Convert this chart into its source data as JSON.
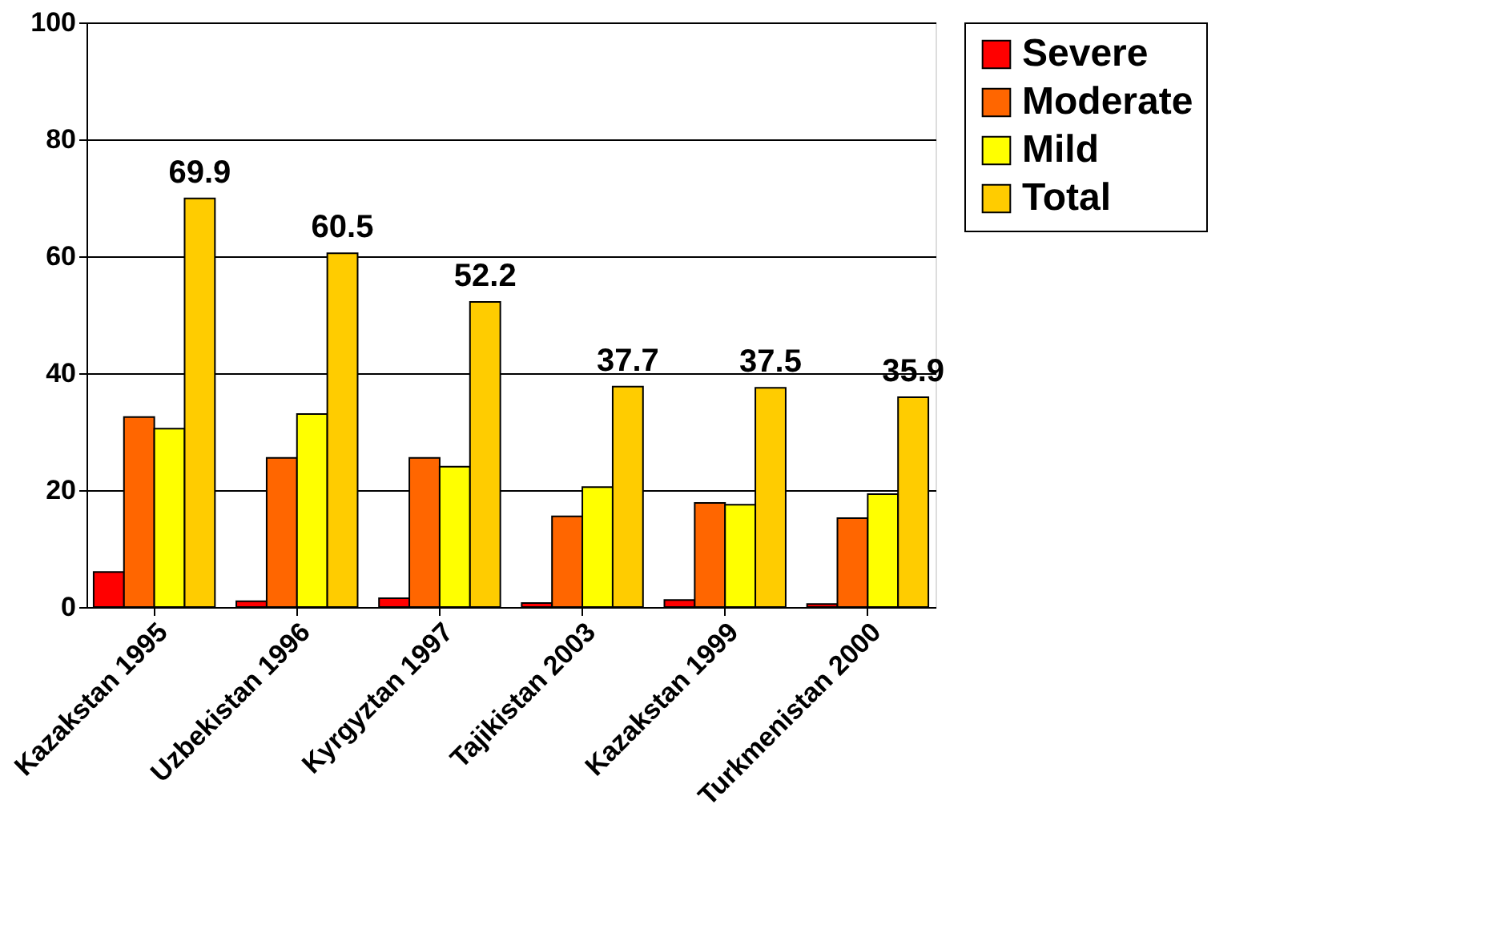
{
  "chart_data": {
    "type": "bar",
    "categories": [
      "Kazakstan 1995",
      "Uzbekistan 1996",
      "Kyrgyztan 1997",
      "Tajikistan 2003",
      "Kazakstan 1999",
      "Turkmenistan 2000"
    ],
    "series": [
      {
        "name": "Severe",
        "color": "#ff0000",
        "values": [
          6,
          1,
          1.5,
          0.7,
          1.2,
          0.5
        ]
      },
      {
        "name": "Moderate",
        "color": "#ff6600",
        "values": [
          32.5,
          25.5,
          25.5,
          15.5,
          17.8,
          15.2
        ]
      },
      {
        "name": "Mild",
        "color": "#ffff00",
        "values": [
          30.5,
          33,
          24,
          20.5,
          17.5,
          19.3
        ]
      },
      {
        "name": "Total",
        "color": "#ffcc00",
        "values": [
          69.9,
          60.5,
          52.2,
          37.7,
          37.5,
          35.9
        ],
        "value_labels": [
          "69.9",
          "60.5",
          "52.2",
          "37.7",
          "37.5",
          "35.9"
        ]
      }
    ],
    "ylim": [
      0,
      100
    ],
    "yticks": [
      0,
      20,
      40,
      60,
      80,
      100
    ],
    "grid": "y",
    "legend": "right"
  }
}
